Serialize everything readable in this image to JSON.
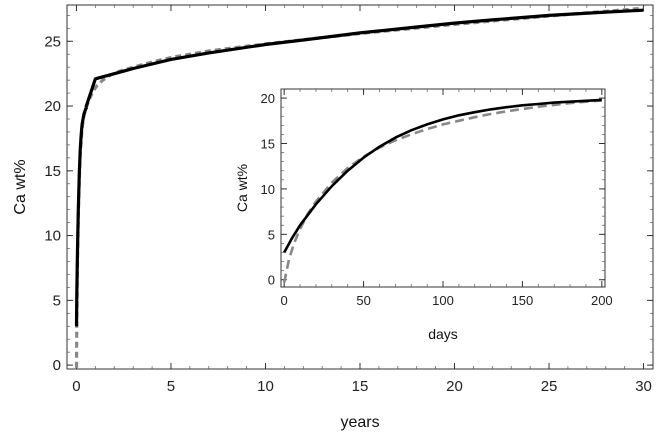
{
  "chart_data": [
    {
      "type": "line",
      "title": "",
      "xlabel": "years",
      "ylabel": "Ca wt%",
      "xlim": [
        -0.5,
        30.5
      ],
      "ylim": [
        -0.3,
        27.8
      ],
      "xticks": [
        0,
        5,
        10,
        15,
        20,
        25,
        30
      ],
      "yticks": [
        0,
        5,
        10,
        15,
        20,
        25
      ],
      "grid": false,
      "legend": "none",
      "series": [
        {
          "style": "solid",
          "color": "#000000",
          "x": [
            0.0,
            0.02,
            0.05,
            0.1,
            0.15,
            0.2,
            0.25,
            0.3,
            0.4,
            0.5,
            0.55,
            0.5,
            1.0,
            2.0,
            3.0,
            5.0,
            7.0,
            10.0,
            12.0,
            15.0,
            18.0,
            20.0,
            22.0,
            25.0,
            28.0,
            30.0
          ],
          "y": [
            3.0,
            5.5,
            8.5,
            12.0,
            14.8,
            16.6,
            17.8,
            18.6,
            19.4,
            19.8,
            19.9,
            19.9,
            22.1,
            22.5,
            22.9,
            23.6,
            24.1,
            24.75,
            25.1,
            25.65,
            26.1,
            26.4,
            26.65,
            27.0,
            27.25,
            27.4
          ],
          "breaks_after_index": [
            10
          ]
        },
        {
          "style": "dashed",
          "color": "#888888",
          "x": [
            0.0,
            0.02,
            0.05,
            0.1,
            0.15,
            0.2,
            0.3,
            0.4,
            0.55,
            0.7,
            0.9,
            1.1,
            1.4,
            1.8,
            2.3,
            3.0,
            4.0,
            5.0,
            7.0,
            10.0,
            15.0,
            20.0,
            25.0,
            30.0
          ],
          "y": [
            -0.2,
            3.5,
            7.5,
            11.5,
            14.3,
            16.2,
            18.3,
            19.3,
            20.0,
            20.6,
            21.2,
            21.6,
            22.0,
            22.4,
            22.7,
            23.0,
            23.4,
            23.75,
            24.25,
            24.8,
            25.6,
            26.3,
            26.95,
            27.55
          ]
        }
      ]
    },
    {
      "type": "line",
      "title": "",
      "xlabel": "days",
      "ylabel": "Ca wt%",
      "xlim": [
        -2,
        202
      ],
      "ylim": [
        -0.8,
        21
      ],
      "xticks": [
        0,
        50,
        100,
        150,
        200
      ],
      "yticks": [
        0,
        5,
        10,
        15,
        20
      ],
      "grid": false,
      "legend": "none",
      "series": [
        {
          "style": "solid",
          "color": "#000000",
          "x": [
            0,
            5,
            10,
            20,
            30,
            40,
            50,
            60,
            70,
            80,
            90,
            100,
            110,
            120,
            130,
            140,
            150,
            160,
            170,
            180,
            190,
            200
          ],
          "y": [
            3.0,
            4.6,
            6.0,
            8.3,
            10.3,
            12.0,
            13.45,
            14.65,
            15.65,
            16.45,
            17.1,
            17.65,
            18.1,
            18.45,
            18.75,
            19.0,
            19.2,
            19.35,
            19.5,
            19.6,
            19.7,
            19.8
          ]
        },
        {
          "style": "dashed",
          "color": "#888888",
          "x": [
            0,
            3,
            6,
            10,
            15,
            20,
            30,
            40,
            50,
            60,
            70,
            80,
            90,
            100,
            110,
            120,
            130,
            140,
            150,
            160,
            170,
            180,
            190,
            200
          ],
          "y": [
            -0.3,
            2.2,
            3.9,
            5.6,
            7.3,
            8.6,
            10.7,
            12.3,
            13.55,
            14.55,
            15.35,
            16.0,
            16.6,
            17.1,
            17.5,
            17.9,
            18.25,
            18.55,
            18.8,
            19.05,
            19.25,
            19.45,
            19.6,
            19.75
          ]
        }
      ]
    }
  ]
}
